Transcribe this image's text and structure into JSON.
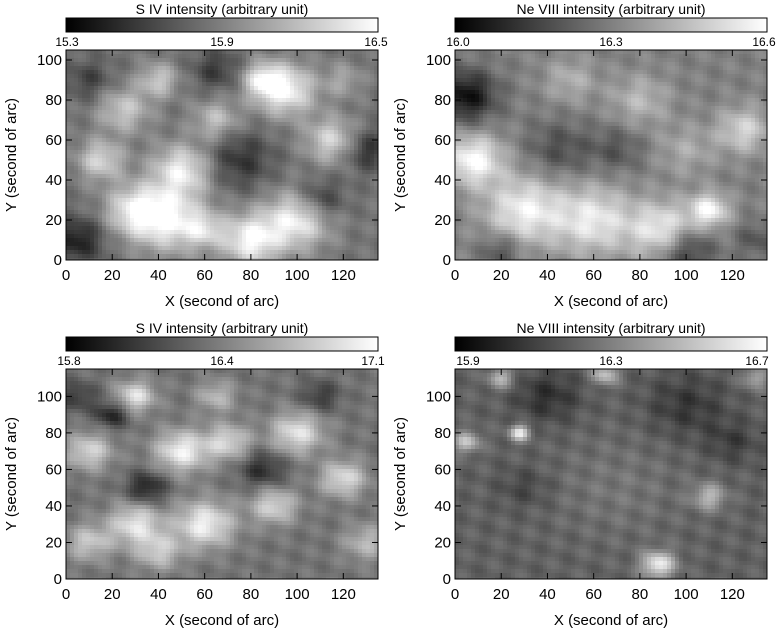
{
  "chart_data": [
    {
      "type": "heatmap",
      "colorbar_title": "S IV intensity (arbitrary unit)",
      "colorbar_ticks": [
        "15.3",
        "15.9",
        "16.5"
      ],
      "colorbar_range": [
        15.3,
        16.5
      ],
      "colormap": "grayscale",
      "xlabel": "X (second of arc)",
      "ylabel": "Y (second of arc)",
      "xlim": [
        0,
        135
      ],
      "ylim": [
        0,
        105
      ],
      "xticks": [
        "0",
        "20",
        "40",
        "60",
        "80",
        "100",
        "120"
      ],
      "yticks": [
        "0",
        "20",
        "40",
        "60",
        "80",
        "100"
      ],
      "blobs": [
        [
          95,
          85,
          9,
          0.95
        ],
        [
          85,
          90,
          6,
          0.7
        ],
        [
          100,
          20,
          10,
          0.9
        ],
        [
          80,
          10,
          9,
          0.95
        ],
        [
          45,
          20,
          11,
          0.9
        ],
        [
          30,
          25,
          9,
          0.8
        ],
        [
          50,
          45,
          9,
          0.85
        ],
        [
          15,
          50,
          7,
          0.7
        ],
        [
          115,
          60,
          8,
          0.7
        ],
        [
          25,
          75,
          8,
          0.6
        ],
        [
          65,
          70,
          7,
          0.55
        ],
        [
          40,
          90,
          6,
          0.6
        ],
        [
          110,
          30,
          7,
          -0.5
        ],
        [
          75,
          50,
          10,
          -0.45
        ],
        [
          5,
          10,
          8,
          -0.6
        ],
        [
          130,
          55,
          7,
          -0.5
        ],
        [
          10,
          90,
          7,
          -0.35
        ],
        [
          65,
          95,
          7,
          -0.4
        ],
        [
          120,
          90,
          6,
          0.35
        ],
        [
          60,
          15,
          6,
          0.5
        ]
      ],
      "base": 0.45
    },
    {
      "type": "heatmap",
      "colorbar_title": "Ne VIII intensity (arbitrary unit)",
      "colorbar_ticks": [
        "16.0",
        "16.3",
        "16.6"
      ],
      "colorbar_range": [
        16.0,
        16.6
      ],
      "colormap": "grayscale",
      "xlabel": "X (second of arc)",
      "ylabel": "Y (second of arc)",
      "xlim": [
        0,
        135
      ],
      "ylim": [
        0,
        105
      ],
      "xticks": [
        "0",
        "20",
        "40",
        "60",
        "80",
        "100",
        "120"
      ],
      "yticks": [
        "0",
        "20",
        "40",
        "60",
        "80",
        "100"
      ],
      "blobs": [
        [
          8,
          50,
          9,
          0.9
        ],
        [
          30,
          25,
          12,
          0.8
        ],
        [
          60,
          20,
          12,
          0.75
        ],
        [
          90,
          15,
          10,
          0.8
        ],
        [
          110,
          25,
          6,
          0.85
        ],
        [
          125,
          65,
          8,
          0.6
        ],
        [
          80,
          80,
          9,
          0.4
        ],
        [
          50,
          90,
          8,
          0.35
        ],
        [
          5,
          82,
          9,
          -0.8
        ],
        [
          45,
          55,
          10,
          -0.35
        ],
        [
          100,
          5,
          8,
          -0.6
        ],
        [
          70,
          55,
          8,
          -0.3
        ],
        [
          20,
          5,
          6,
          -0.4
        ],
        [
          130,
          10,
          6,
          -0.3
        ],
        [
          100,
          55,
          9,
          0.3
        ]
      ],
      "base": 0.5
    },
    {
      "type": "heatmap",
      "colorbar_title": "S IV intensity (arbitrary unit)",
      "colorbar_ticks": [
        "15.8",
        "16.4",
        "17.1"
      ],
      "colorbar_range": [
        15.8,
        17.1
      ],
      "colormap": "grayscale",
      "xlabel": "X (second of arc)",
      "ylabel": "Y (second of arc)",
      "xlim": [
        0,
        135
      ],
      "ylim": [
        0,
        115
      ],
      "xticks": [
        "0",
        "20",
        "40",
        "60",
        "80",
        "100",
        "120"
      ],
      "yticks": [
        "0",
        "20",
        "40",
        "60",
        "80",
        "100"
      ],
      "blobs": [
        [
          30,
          100,
          6,
          0.8
        ],
        [
          20,
          90,
          5,
          -0.6
        ],
        [
          10,
          70,
          7,
          0.7
        ],
        [
          50,
          70,
          8,
          0.9
        ],
        [
          70,
          75,
          7,
          0.7
        ],
        [
          100,
          80,
          8,
          0.8
        ],
        [
          120,
          55,
          7,
          0.75
        ],
        [
          60,
          30,
          9,
          0.9
        ],
        [
          30,
          30,
          8,
          0.8
        ],
        [
          90,
          40,
          7,
          0.7
        ],
        [
          10,
          20,
          7,
          0.6
        ],
        [
          40,
          15,
          7,
          0.6
        ],
        [
          35,
          50,
          6,
          -0.6
        ],
        [
          85,
          60,
          7,
          -0.5
        ],
        [
          110,
          100,
          6,
          -0.4
        ],
        [
          5,
          100,
          6,
          -0.4
        ],
        [
          130,
          20,
          7,
          0.5
        ],
        [
          65,
          100,
          6,
          0.5
        ]
      ],
      "base": 0.45
    },
    {
      "type": "heatmap",
      "colorbar_title": "Ne VIII intensity (arbitrary unit)",
      "colorbar_ticks": [
        "15.9",
        "16.3",
        "16.7"
      ],
      "colorbar_range": [
        15.9,
        16.7
      ],
      "colormap": "grayscale",
      "xlabel": "X (second of arc)",
      "ylabel": "Y (second of arc)",
      "xlim": [
        0,
        135
      ],
      "ylim": [
        0,
        115
      ],
      "xticks": [
        "0",
        "20",
        "40",
        "60",
        "80",
        "100",
        "120"
      ],
      "yticks": [
        "0",
        "20",
        "40",
        "60",
        "80",
        "100"
      ],
      "blobs": [
        [
          28,
          80,
          3,
          1.0
        ],
        [
          88,
          8,
          5,
          1.0
        ],
        [
          5,
          75,
          4,
          0.7
        ],
        [
          110,
          45,
          5,
          0.6
        ],
        [
          65,
          112,
          4,
          0.7
        ],
        [
          20,
          110,
          4,
          0.6
        ],
        [
          130,
          110,
          4,
          0.5
        ],
        [
          70,
          50,
          20,
          0.15
        ],
        [
          40,
          100,
          10,
          -0.35
        ],
        [
          100,
          95,
          12,
          -0.3
        ],
        [
          30,
          50,
          8,
          -0.2
        ],
        [
          120,
          75,
          8,
          -0.25
        ]
      ],
      "base": 0.38
    }
  ]
}
